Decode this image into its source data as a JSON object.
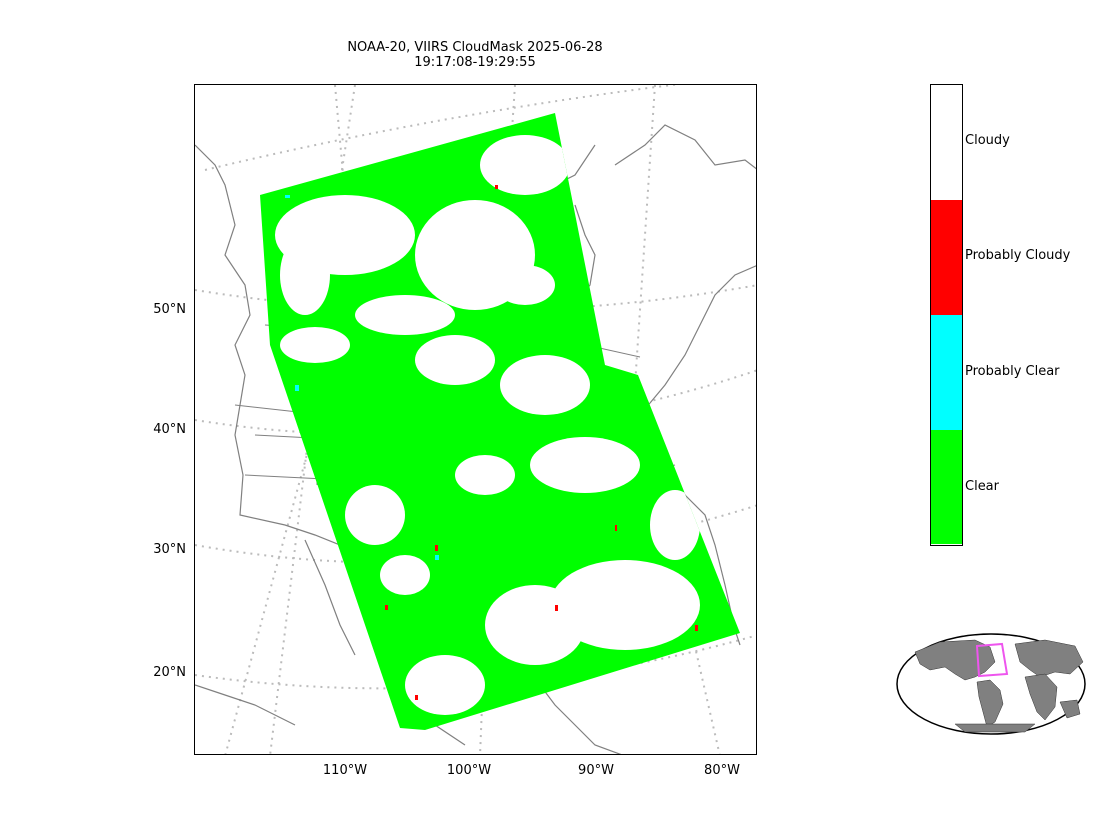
{
  "title": {
    "line1": "NOAA-20, VIIRS CloudMask 2025-06-28",
    "line2": "19:17:08-19:29:55"
  },
  "map": {
    "latitude_labels": [
      "50°N",
      "40°N",
      "30°N",
      "20°N"
    ],
    "longitude_labels": [
      "110°W",
      "100°W",
      "90°W",
      "80°W"
    ]
  },
  "legend": {
    "categories": [
      {
        "label": "Cloudy",
        "color": "#ffffff"
      },
      {
        "label": "Probably Cloudy",
        "color": "#ff0000"
      },
      {
        "label": "Probably Clear",
        "color": "#00ffff"
      },
      {
        "label": "Clear",
        "color": "#00ff00"
      }
    ]
  },
  "inset": {
    "name": "world-overview-map",
    "land_color": "#808080",
    "box_color": "#ee55ee"
  }
}
